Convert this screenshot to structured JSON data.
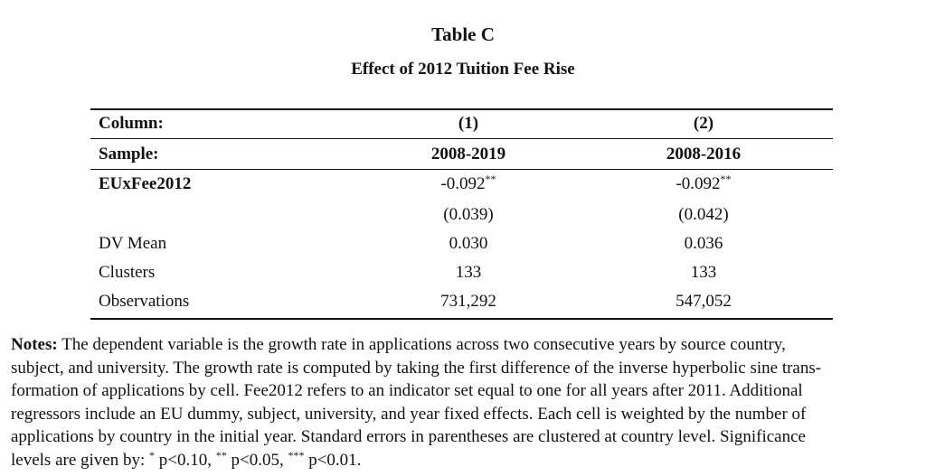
{
  "title": "Table C",
  "subtitle": "Effect of 2012 Tuition Fee Rise",
  "table": {
    "header": {
      "column": {
        "label": "Column:",
        "c1": "(1)",
        "c2": "(2)"
      },
      "sample": {
        "label": "Sample:",
        "c1": "2008-2019",
        "c2": "2008-2016"
      }
    },
    "rows": [
      {
        "label": "EUxFee2012",
        "c1": "-0.092",
        "c1_sig": "**",
        "c2": "-0.092",
        "c2_sig": "**"
      },
      {
        "label": "",
        "c1": "(0.039)",
        "c2": "(0.042)"
      },
      {
        "label": "DV Mean",
        "c1": "0.030",
        "c2": "0.036"
      },
      {
        "label": "Clusters",
        "c1": "133",
        "c2": "133"
      },
      {
        "label": "Observations",
        "c1": "731,292",
        "c2": "547,052"
      }
    ]
  },
  "notes": {
    "label": "Notes:",
    "lines": [
      " The dependent variable is the growth rate in applications across two consecutive years by source country,",
      "subject, and university. The growth rate is computed by taking the first difference of the inverse hyperbolic sine trans-",
      "formation of applications by cell. Fee2012 refers to an indicator set equal to one for all years after 2011. Additional",
      "regressors include an EU dummy, subject, university, and year fixed effects. Each cell is weighted by the number of",
      "applications by country in the initial year. Standard errors in parentheses are clustered at country level. Significance"
    ],
    "sig_parts": [
      "levels are given by: ",
      "*",
      " p<0.10, ",
      "**",
      " p<0.05, ",
      "***",
      " p<0.01."
    ]
  }
}
